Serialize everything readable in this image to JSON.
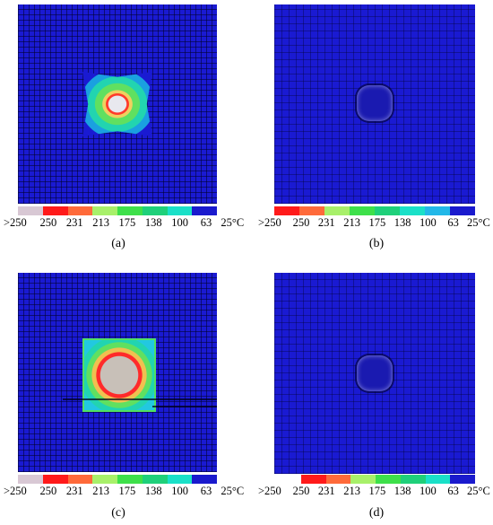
{
  "panels": [
    {
      "id": "a",
      "caption": "(a)"
    },
    {
      "id": "b",
      "caption": "(b)"
    },
    {
      "id": "c",
      "caption": "(c)"
    },
    {
      "id": "d",
      "caption": "(d)"
    }
  ],
  "legend": {
    "labels": [
      ">250",
      "250",
      "231",
      "213",
      "175",
      "138",
      "100",
      "63",
      "25°C"
    ],
    "colors": [
      "#d8c8d4",
      "#ff1a1a",
      "#ff6a3a",
      "#a8f06a",
      "#3ee04a",
      "#1fd07a",
      "#1ae0c8",
      "#22b8e8",
      "#1a1acd"
    ]
  }
}
